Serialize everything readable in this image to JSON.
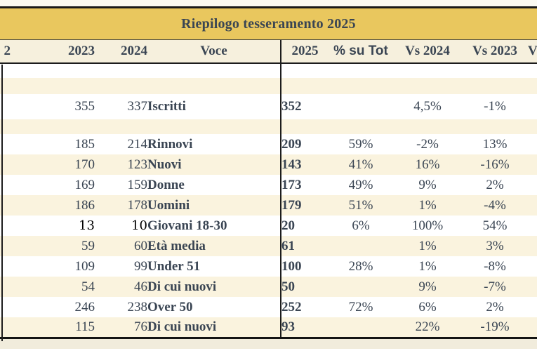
{
  "table": {
    "title": "Riepilogo tesseramento 2025",
    "columns": [
      {
        "key": "y2022",
        "label": "2"
      },
      {
        "key": "y2023",
        "label": "2023"
      },
      {
        "key": "y2024",
        "label": "2024"
      },
      {
        "key": "voce",
        "label": "Voce"
      },
      {
        "key": "y2025",
        "label": "2025"
      },
      {
        "key": "pct",
        "label": "% su Tot"
      },
      {
        "key": "vs2024",
        "label": "Vs 2024"
      },
      {
        "key": "vs2023",
        "label": "Vs 2023"
      },
      {
        "key": "cut",
        "label": "V"
      }
    ],
    "rows": [
      {
        "type": "spacer"
      },
      {
        "type": "spacer"
      },
      {
        "type": "data",
        "y2023": "355",
        "y2024": "337",
        "voce": "Iscritti",
        "y2025": "352",
        "pct": "",
        "vs2024": "4,5%",
        "vs2023": "-1%"
      },
      {
        "type": "spacer"
      },
      {
        "type": "data",
        "y2023": "185",
        "y2024": "214",
        "voce": "Rinnovi",
        "y2025": "209",
        "pct": "59%",
        "vs2024": "-2%",
        "vs2023": "13%"
      },
      {
        "type": "data",
        "y2023": "170",
        "y2024": "123",
        "voce": "Nuovi",
        "y2025": "143",
        "pct": "41%",
        "vs2024": "16%",
        "vs2023": "-16%"
      },
      {
        "type": "data",
        "y2023": "169",
        "y2024": "159",
        "voce": "Donne",
        "y2025": "173",
        "pct": "49%",
        "vs2024": "9%",
        "vs2023": "2%"
      },
      {
        "type": "data",
        "y2023": "186",
        "y2024": "178",
        "voce": "Uomini",
        "y2025": "179",
        "pct": "51%",
        "vs2024": "1%",
        "vs2023": "-4%"
      },
      {
        "type": "data",
        "blackNums": true,
        "y2023": "13",
        "y2024": "10",
        "voce": "Giovani 18-30",
        "y2025": "20",
        "pct": "6%",
        "vs2024": "100%",
        "vs2023": "54%"
      },
      {
        "type": "data",
        "y2023": "59",
        "y2024": "60",
        "voce": "Età media",
        "y2025": "61",
        "pct": "",
        "vs2024": "1%",
        "vs2023": "3%"
      },
      {
        "type": "data",
        "y2023": "109",
        "y2024": "99",
        "voce": "Under 51",
        "y2025": "100",
        "pct": "28%",
        "vs2024": "1%",
        "vs2023": "-8%"
      },
      {
        "type": "data",
        "y2023": "54",
        "y2024": "46",
        "voce": "Di cui nuovi",
        "y2025": "50",
        "pct": "",
        "vs2024": "9%",
        "vs2023": "-7%"
      },
      {
        "type": "data",
        "y2023": "246",
        "y2024": "238",
        "voce": "Over 50",
        "y2025": "252",
        "pct": "72%",
        "vs2024": "6%",
        "vs2023": "2%"
      },
      {
        "type": "data",
        "y2023": "115",
        "y2024": "76",
        "voce": "Di cui nuovi",
        "y2025": "93",
        "pct": "",
        "vs2024": "22%",
        "vs2023": "-19%"
      }
    ]
  },
  "colors": {
    "title_bg": "#e9c75e",
    "header_bg": "#f6f0dd",
    "row_bg": "#ffffff",
    "row_alt_bg": "#faf3de",
    "text": "#3a4553",
    "black_values": "#000000",
    "border": "#1c1c1c",
    "outside_top": "#fbfaf2",
    "outside_bottom": "#f1ecdc"
  }
}
